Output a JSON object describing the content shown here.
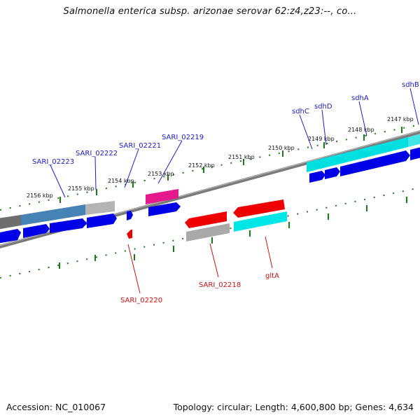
{
  "title": "Salmonella enterica subsp. arizonae serovar 62:z4,z23:--, co...",
  "footer": {
    "accession": "Accession: NC_010067",
    "topology": "Topology: circular; Length: 4,600,800 bp; Genes: 4,634"
  },
  "ticks": [
    "2156 kbp",
    "2155 kbp",
    "2154 kbp",
    "2153 kbp",
    "2152 kbp",
    "2151 kbp",
    "2150 kbp",
    "2149 kbp",
    "2148 kbp",
    "2147 kbp"
  ],
  "labels": {
    "SARI_02223": "SARI_02223",
    "SARI_02222": "SARI_02222",
    "SARI_02221": "SARI_02221",
    "SARI_02219": "SARI_02219",
    "sdhC": "sdhC",
    "sdhD": "sdhD",
    "sdhA": "sdhA",
    "sdhB": "sdhB",
    "SARI_02220": "SARI_02220",
    "SARI_02218": "SARI_02218",
    "gltA": "gltA"
  },
  "colors": {
    "forward_cds": "#0000e6",
    "reverse_cds": "#ee0000",
    "backbone": "#808080",
    "tick": "#1a7a1a",
    "forward_label": "#1a1acc",
    "reverse_label": "#cc1111",
    "cyan": "#00e6e6",
    "magenta": "#e6198c",
    "steel": "#4682b4",
    "gray": "#a9a9a9"
  }
}
